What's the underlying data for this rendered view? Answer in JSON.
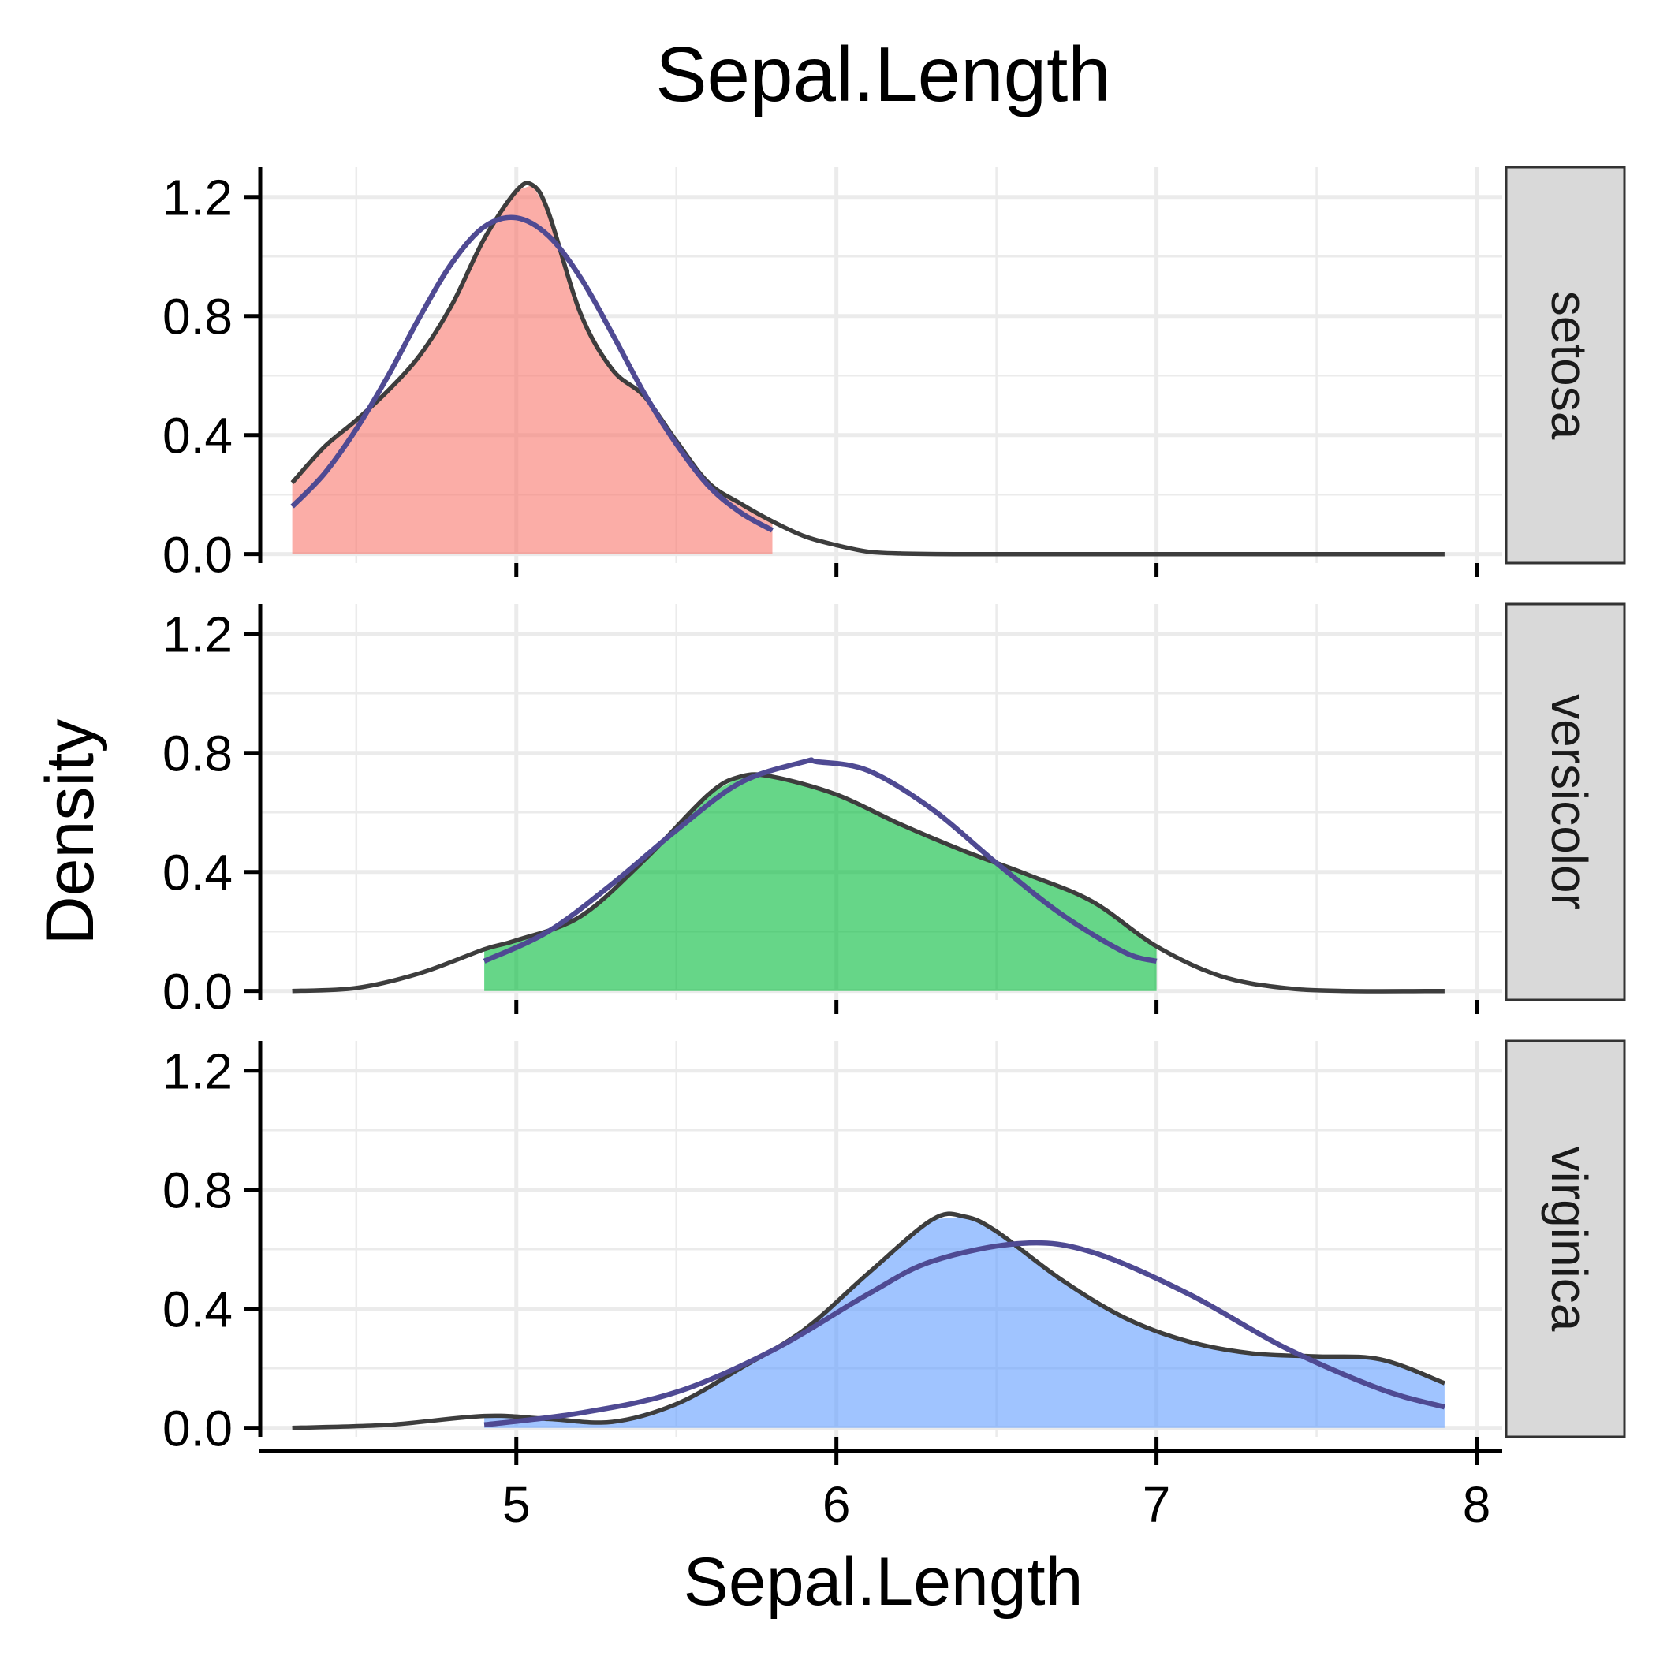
{
  "chart_data": {
    "type": "area",
    "title": "Sepal.Length",
    "xlabel": "Sepal.Length",
    "ylabel": "Density",
    "xlim": [
      4.2,
      8.08
    ],
    "ylim": [
      -0.03,
      1.3
    ],
    "x_ticks": [
      5,
      6,
      7,
      8
    ],
    "y_ticks": [
      0.0,
      0.4,
      0.8,
      1.2
    ],
    "y_tick_labels": [
      "0.0",
      "0.4",
      "0.8",
      "1.2"
    ],
    "x_minor_gridlines": [
      4.5,
      5.5,
      6.5,
      7.5
    ],
    "y_minor_gridlines": [
      0.2,
      0.6,
      1.0
    ],
    "grid": true,
    "facet_direction": "rows",
    "strip_position": "right",
    "colors": {
      "density_line": "#3d3d3d",
      "normal_fit_line": "#4f4a93",
      "grid": "#ebebeb",
      "strip_fill": "#d9d9d9",
      "strip_border": "#333333"
    },
    "panels": [
      {
        "label": "setosa",
        "fill_color": "#f8766d",
        "fill_range": [
          4.3,
          5.8
        ],
        "density": {
          "x": [
            4.3,
            4.4,
            4.5,
            4.6,
            4.7,
            4.8,
            4.9,
            5.0,
            5.05,
            5.1,
            5.2,
            5.3,
            5.4,
            5.5,
            5.6,
            5.7,
            5.8,
            5.9,
            6.0,
            6.1,
            6.2,
            6.4,
            7.0,
            7.9
          ],
          "y": [
            0.24,
            0.36,
            0.45,
            0.55,
            0.67,
            0.84,
            1.06,
            1.22,
            1.24,
            1.15,
            0.81,
            0.62,
            0.53,
            0.38,
            0.24,
            0.17,
            0.11,
            0.06,
            0.03,
            0.008,
            0.002,
            0.0,
            0.0,
            0.0
          ]
        },
        "normal_fit": {
          "x": [
            4.3,
            4.4,
            4.5,
            4.6,
            4.7,
            4.8,
            4.9,
            5.0,
            5.1,
            5.2,
            5.3,
            5.4,
            5.5,
            5.6,
            5.7,
            5.8
          ],
          "y": [
            0.16,
            0.27,
            0.42,
            0.6,
            0.8,
            0.98,
            1.1,
            1.13,
            1.07,
            0.93,
            0.74,
            0.54,
            0.37,
            0.23,
            0.14,
            0.08
          ]
        }
      },
      {
        "label": "versicolor",
        "fill_color": "#00ba38",
        "fill_range": [
          4.9,
          7.0
        ],
        "density": {
          "x": [
            4.3,
            4.5,
            4.7,
            4.9,
            5.0,
            5.2,
            5.4,
            5.6,
            5.7,
            5.8,
            6.0,
            6.2,
            6.4,
            6.6,
            6.8,
            7.0,
            7.2,
            7.4,
            7.6,
            7.9
          ],
          "y": [
            0.0,
            0.01,
            0.06,
            0.14,
            0.17,
            0.25,
            0.44,
            0.66,
            0.72,
            0.72,
            0.66,
            0.56,
            0.47,
            0.39,
            0.3,
            0.15,
            0.05,
            0.01,
            0.0,
            0.0
          ]
        },
        "normal_fit": {
          "x": [
            4.9,
            5.1,
            5.3,
            5.5,
            5.7,
            5.9,
            5.94,
            6.1,
            6.3,
            6.5,
            6.7,
            6.9,
            7.0
          ],
          "y": [
            0.1,
            0.2,
            0.36,
            0.54,
            0.7,
            0.77,
            0.77,
            0.74,
            0.61,
            0.43,
            0.26,
            0.13,
            0.1
          ]
        }
      },
      {
        "label": "virginica",
        "fill_color": "#619cff",
        "fill_range": [
          4.9,
          7.9
        ],
        "density": {
          "x": [
            4.3,
            4.6,
            4.9,
            5.1,
            5.3,
            5.5,
            5.7,
            5.9,
            6.1,
            6.3,
            6.4,
            6.5,
            6.7,
            6.9,
            7.1,
            7.3,
            7.5,
            7.7,
            7.9
          ],
          "y": [
            0.0,
            0.01,
            0.04,
            0.03,
            0.02,
            0.08,
            0.2,
            0.33,
            0.52,
            0.7,
            0.71,
            0.66,
            0.5,
            0.37,
            0.29,
            0.25,
            0.24,
            0.23,
            0.15
          ]
        },
        "normal_fit": {
          "x": [
            4.9,
            5.2,
            5.5,
            5.8,
            6.1,
            6.3,
            6.58,
            6.8,
            7.1,
            7.4,
            7.7,
            7.9
          ],
          "y": [
            0.01,
            0.05,
            0.12,
            0.26,
            0.45,
            0.56,
            0.62,
            0.59,
            0.45,
            0.27,
            0.13,
            0.07
          ]
        }
      }
    ]
  }
}
